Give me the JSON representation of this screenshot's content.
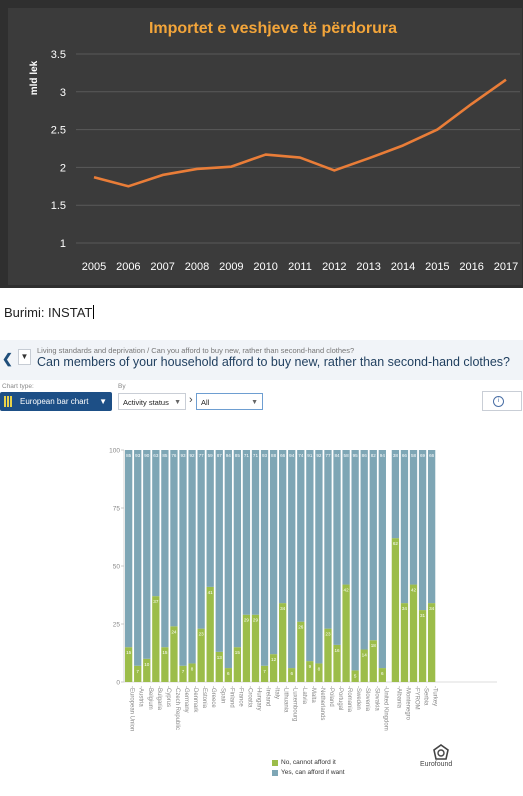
{
  "source_text": "Burimi: INSTAT",
  "header": {
    "back_icon": "chevron-left-icon",
    "menu_icon": "caret-down-icon",
    "breadcrumb": "Living standards and deprivation / Can you afford to buy new, rather than second-hand clothes?",
    "question": "Can members of your household afford to buy new, rather than second-hand clothes?"
  },
  "controls": {
    "chart_type_label": "Chart type:",
    "chart_type_value": "European bar chart",
    "by_label": "By",
    "by_value": "Activity status",
    "filter_value": "All",
    "info_icon": "info-icon"
  },
  "brand": {
    "name": "Eurofound",
    "icon": "eurofound-logo"
  },
  "chart_data": [
    {
      "type": "line",
      "title": "Importet e veshjeve të përdorura",
      "ylabel": "mld lek",
      "x": [
        "2005",
        "2006",
        "2007",
        "2008",
        "2009",
        "2010",
        "2011",
        "2012",
        "2013",
        "2014",
        "2015",
        "2016",
        "2017"
      ],
      "values": [
        1.87,
        1.75,
        1.9,
        1.98,
        2.01,
        2.17,
        2.13,
        1.96,
        2.12,
        2.29,
        2.5,
        2.84,
        3.16
      ],
      "ylim": [
        1,
        3.5
      ],
      "yticks": [
        "1",
        "1.5",
        "2",
        "2.5",
        "3",
        "3.5"
      ],
      "grid": true,
      "colors": {
        "background": "#2f2f2f",
        "line": "#e97d38",
        "title": "#f3a53a",
        "grid": "#5a5a5a",
        "text": "#ffffff"
      }
    },
    {
      "type": "bar",
      "stacked": true,
      "ylim": [
        0,
        100
      ],
      "yticks": [
        "0",
        "25",
        "50",
        "75",
        "100"
      ],
      "categories": [
        "European Union",
        "Austria",
        "Belgium",
        "Bulgaria",
        "Cyprus",
        "Czech Republic",
        "Germany",
        "Denmark",
        "Estonia",
        "Greece",
        "Spain",
        "Finland",
        "France",
        "Croatia",
        "Hungary",
        "Ireland",
        "Italy",
        "Lithuania",
        "Luxembourg",
        "Latvia",
        "Malta",
        "Netherlands",
        "Poland",
        "Portugal",
        "Romania",
        "Sweden",
        "Slovenia",
        "Slovakia",
        "United Kingdom",
        "Albania",
        "Montenegro",
        "FYROM",
        "Serbia",
        "Turkey"
      ],
      "series": [
        {
          "name": "No, cannot afford it",
          "color": "#9cbd4a",
          "values": [
            15,
            7,
            10,
            37,
            15,
            24,
            7,
            8,
            23,
            41,
            13,
            6,
            15,
            29,
            29,
            7,
            12,
            34,
            6,
            26,
            9,
            8,
            23,
            16,
            42,
            5,
            14,
            18,
            6,
            62,
            34,
            42,
            31,
            34
          ]
        },
        {
          "name": "Yes, can afford if want",
          "color": "#7ea6b5",
          "values": [
            85,
            93,
            90,
            63,
            85,
            76,
            93,
            92,
            77,
            59,
            87,
            94,
            85,
            71,
            71,
            93,
            88,
            66,
            94,
            74,
            91,
            92,
            77,
            84,
            58,
            95,
            86,
            82,
            94,
            38,
            66,
            58,
            69,
            66
          ]
        }
      ],
      "legend_position": "bottom"
    }
  ]
}
